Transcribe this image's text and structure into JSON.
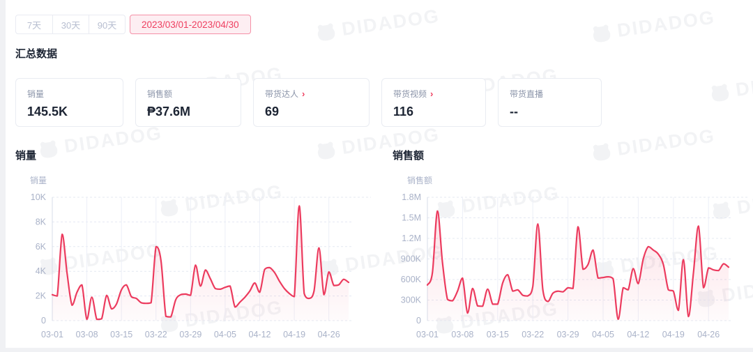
{
  "page": {
    "watermark_text": "DIDADOG"
  },
  "filters": {
    "range_tabs": [
      "7天",
      "30天",
      "90天"
    ],
    "date_range": "2023/03/01-2023/04/30"
  },
  "summary": {
    "section_title": "汇总数据",
    "chevron": "›",
    "cards": [
      {
        "label": "销量",
        "value": "145.5K",
        "linked": false
      },
      {
        "label": "销售额",
        "value": "₱37.6M",
        "linked": false
      },
      {
        "label": "带货达人",
        "value": "69",
        "linked": true
      },
      {
        "label": "带货视频",
        "value": "116",
        "linked": true
      },
      {
        "label": "带货直播",
        "value": "--",
        "linked": false
      }
    ]
  },
  "chart_data": [
    {
      "type": "line",
      "title": "销量",
      "ylabel": "销量",
      "x_start": "03-01",
      "x_end": "04-30",
      "x_tick_labels": [
        "03-01",
        "03-08",
        "03-15",
        "03-22",
        "03-29",
        "04-05",
        "04-12",
        "04-19",
        "04-26"
      ],
      "x_tick_interval": 7,
      "y_tick_labels": [
        "10K",
        "8K",
        "6K",
        "4K",
        "2K",
        "0"
      ],
      "ylim": [
        0,
        10000
      ],
      "grid": true,
      "legend": "none",
      "line_color": "#ec3b5e",
      "values": [
        2100,
        2000,
        7000,
        3800,
        1250,
        2300,
        2900,
        100,
        1900,
        100,
        150,
        2050,
        950,
        1350,
        2500,
        2900,
        1950,
        1800,
        1450,
        1400,
        1450,
        6000,
        4900,
        350,
        300,
        1700,
        2100,
        2150,
        2050,
        4500,
        2800,
        4100,
        3400,
        2600,
        2550,
        2700,
        2800,
        1100,
        1500,
        1900,
        2400,
        3050,
        2300,
        4150,
        4300,
        3900,
        3200,
        2600,
        2200,
        1950,
        9300,
        2200,
        1800,
        2400,
        5900,
        2100,
        3950,
        2850,
        2900,
        3350,
        3100
      ]
    },
    {
      "type": "line",
      "title": "销售额",
      "ylabel": "销售额",
      "x_start": "03-01",
      "x_end": "04-30",
      "x_tick_labels": [
        "03-01",
        "03-08",
        "03-15",
        "03-22",
        "03-29",
        "04-05",
        "04-12",
        "04-19",
        "04-26"
      ],
      "x_tick_interval": 7,
      "y_tick_labels": [
        "1.8M",
        "1.5M",
        "1.2M",
        "900K",
        "600K",
        "300K",
        "0"
      ],
      "ylim": [
        0,
        1800000
      ],
      "grid": true,
      "legend": "none",
      "line_color": "#ec3b5e",
      "values": [
        520000,
        700000,
        1600000,
        850000,
        310000,
        290000,
        430000,
        620000,
        110000,
        470000,
        215000,
        210000,
        460000,
        240000,
        240000,
        550000,
        670000,
        430000,
        450000,
        370000,
        360000,
        500000,
        1410000,
        450000,
        280000,
        400000,
        430000,
        420000,
        480000,
        470000,
        1370000,
        750000,
        820000,
        1030000,
        620000,
        630000,
        640000,
        610000,
        20000,
        480000,
        450000,
        760000,
        540000,
        900000,
        1080000,
        1030000,
        970000,
        820000,
        450000,
        430000,
        150000,
        890000,
        60000,
        700000,
        1380000,
        480000,
        770000,
        740000,
        730000,
        830000,
        780000
      ]
    }
  ]
}
